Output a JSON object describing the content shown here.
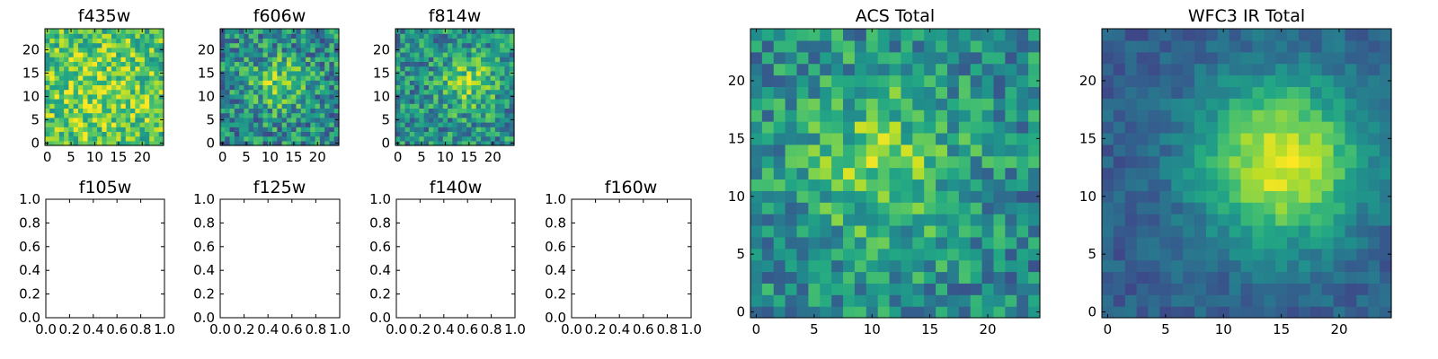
{
  "figure": {
    "colormap": "viridis"
  },
  "chart_data": [
    {
      "type": "heatmap",
      "title": "f435w",
      "grid": {
        "rows": 25,
        "cols": 25
      },
      "xlim": [
        -0.5,
        24.5
      ],
      "ylim": [
        -0.5,
        24.5
      ],
      "xticks": [
        0,
        5,
        10,
        15,
        20
      ],
      "yticks": [
        0,
        5,
        10,
        15,
        20
      ],
      "xticklabels": [
        "0",
        "5",
        "10",
        "15",
        "20"
      ],
      "yticklabels": [
        "0",
        "5",
        "10",
        "15",
        "20"
      ],
      "pattern": {
        "peak_x": 11,
        "peak_y": 11,
        "sigma": 9,
        "amplitude": 0.15,
        "base": 0.68,
        "noise": 0.5,
        "seed": 11
      }
    },
    {
      "type": "heatmap",
      "title": "f606w",
      "grid": {
        "rows": 25,
        "cols": 25
      },
      "xlim": [
        -0.5,
        24.5
      ],
      "ylim": [
        -0.5,
        24.5
      ],
      "xticks": [
        0,
        5,
        10,
        15,
        20
      ],
      "yticks": [
        0,
        5,
        10,
        15,
        20
      ],
      "xticklabels": [
        "0",
        "5",
        "10",
        "15",
        "20"
      ],
      "yticklabels": [
        "0",
        "5",
        "10",
        "15",
        "20"
      ],
      "pattern": {
        "peak_x": 12,
        "peak_y": 13,
        "sigma": 4,
        "amplitude": 0.3,
        "base": 0.48,
        "noise": 0.55,
        "seed": 23
      }
    },
    {
      "type": "heatmap",
      "title": "f814w",
      "grid": {
        "rows": 25,
        "cols": 25
      },
      "xlim": [
        -0.5,
        24.5
      ],
      "ylim": [
        -0.5,
        24.5
      ],
      "xticks": [
        0,
        5,
        10,
        15,
        20
      ],
      "yticks": [
        0,
        5,
        10,
        15,
        20
      ],
      "xticklabels": [
        "0",
        "5",
        "10",
        "15",
        "20"
      ],
      "yticklabels": [
        "0",
        "5",
        "10",
        "15",
        "20"
      ],
      "pattern": {
        "peak_x": 15,
        "peak_y": 13,
        "sigma": 4,
        "amplitude": 0.3,
        "base": 0.5,
        "noise": 0.5,
        "seed": 37
      }
    },
    {
      "type": "empty",
      "title": "f105w",
      "xlim": [
        0,
        1
      ],
      "ylim": [
        0,
        1
      ],
      "xticklabels": [
        "0.0",
        "0.2",
        "0.4",
        "0.6",
        "0.8",
        "1.0"
      ],
      "yticklabels": [
        "0.0",
        "0.2",
        "0.4",
        "0.6",
        "0.8",
        "1.0"
      ]
    },
    {
      "type": "empty",
      "title": "f125w",
      "xlim": [
        0,
        1
      ],
      "ylim": [
        0,
        1
      ],
      "xticklabels": [
        "0.0",
        "0.2",
        "0.4",
        "0.6",
        "0.8",
        "1.0"
      ],
      "yticklabels": [
        "0.0",
        "0.2",
        "0.4",
        "0.6",
        "0.8",
        "1.0"
      ]
    },
    {
      "type": "empty",
      "title": "f140w",
      "xlim": [
        0,
        1
      ],
      "ylim": [
        0,
        1
      ],
      "xticklabels": [
        "0.0",
        "0.2",
        "0.4",
        "0.6",
        "0.8",
        "1.0"
      ],
      "yticklabels": [
        "0.0",
        "0.2",
        "0.4",
        "0.6",
        "0.8",
        "1.0"
      ]
    },
    {
      "type": "empty",
      "title": "f160w",
      "xlim": [
        0,
        1
      ],
      "ylim": [
        0,
        1
      ],
      "xticklabels": [
        "0.0",
        "0.2",
        "0.4",
        "0.6",
        "0.8",
        "1.0"
      ],
      "yticklabels": [
        "0.0",
        "0.2",
        "0.4",
        "0.6",
        "0.8",
        "1.0"
      ]
    },
    {
      "type": "heatmap",
      "title": "ACS Total",
      "grid": {
        "rows": 25,
        "cols": 25
      },
      "xlim": [
        -0.5,
        24.5
      ],
      "ylim": [
        -0.5,
        24.5
      ],
      "xticks": [
        0,
        5,
        10,
        15,
        20
      ],
      "yticks": [
        0,
        5,
        10,
        15,
        20
      ],
      "xticklabels": [
        "0",
        "5",
        "10",
        "15",
        "20"
      ],
      "yticklabels": [
        "0",
        "5",
        "10",
        "15",
        "20"
      ],
      "pattern": {
        "peak_x": 11,
        "peak_y": 13,
        "sigma": 5,
        "amplitude": 0.3,
        "base": 0.48,
        "noise": 0.45,
        "seed": 51
      }
    },
    {
      "type": "heatmap",
      "title": "WFC3 IR Total",
      "grid": {
        "rows": 25,
        "cols": 25
      },
      "xlim": [
        -0.5,
        24.5
      ],
      "ylim": [
        -0.5,
        24.5
      ],
      "xticks": [
        0,
        5,
        10,
        15,
        20
      ],
      "yticks": [
        0,
        5,
        10,
        15,
        20
      ],
      "xticklabels": [
        "0",
        "5",
        "10",
        "15",
        "20"
      ],
      "yticklabels": [
        "0",
        "5",
        "10",
        "15",
        "20"
      ],
      "pattern": {
        "peak_x": 15,
        "peak_y": 13,
        "sigma": 5,
        "amplitude": 0.65,
        "base": 0.3,
        "noise": 0.18,
        "seed": 73
      }
    }
  ]
}
